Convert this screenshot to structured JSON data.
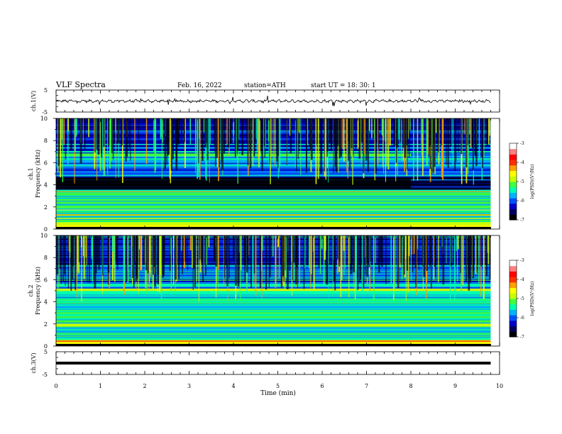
{
  "header": {
    "title": "VLF  Spectra",
    "date": "Feb. 16, 2022",
    "station": "station=ATH",
    "start": "start  UT  =   18: 30: 1"
  },
  "panels": {
    "ch1_label": "ch.1(V)",
    "ch1_ymax": "5",
    "ch1_ymin": "-5",
    "spec1_label": "ch.1\nFrequency (kHz)",
    "spec2_label": "ch.2\nFrequency (kHz)",
    "ch3_label": "ch.3(V)",
    "ch3_ymax": "5",
    "ch3_ymin": "-5",
    "xlabel": "Time  (min)"
  },
  "colorbar": {
    "label": "log(PSD)(V²/Hz)",
    "ticks": [
      "-3",
      "-4",
      "-5",
      "-6",
      "-7"
    ],
    "colors": [
      "#000000",
      "#000060",
      "#0000c8",
      "#0050ff",
      "#00b4ff",
      "#00ffb0",
      "#40ff40",
      "#c8ff00",
      "#ffff00",
      "#ffa000",
      "#ff3000",
      "#ff0000",
      "#ff8080",
      "#ffffff"
    ]
  },
  "chart_data": [
    {
      "type": "line",
      "title": "ch.1(V)",
      "ylabel": "ch.1(V)",
      "xlabel": "Time  (min)",
      "xlim": [
        0,
        10
      ],
      "ylim": [
        -5,
        5
      ],
      "data_end_min": 9.8,
      "baseline_v": 0,
      "noise_amplitude_v": 1,
      "grid": false
    },
    {
      "type": "heatmap",
      "title": "ch.1",
      "ylabel": "Frequency (kHz)",
      "xlim": [
        0,
        10
      ],
      "ylim": [
        0,
        10
      ],
      "x_ticks": [
        "0",
        "1",
        "2",
        "3",
        "4",
        "5",
        "6",
        "7",
        "8",
        "9",
        "10"
      ],
      "y_ticks": [
        "0",
        "2",
        "4",
        "6",
        "8",
        "10"
      ],
      "color_scale": "log(PSD)(V²/Hz)",
      "clim": [
        -7,
        -3
      ],
      "features": [
        {
          "kind": "band",
          "freq_khz": 6.7,
          "t_end_min": 8.0,
          "level": -5.3
        },
        {
          "kind": "band",
          "freq_khz": 2.0,
          "level": -5.2
        },
        {
          "kind": "band",
          "freq_khz": 0.5,
          "level": -4.7
        },
        {
          "kind": "quiet_zone",
          "freq_khz": [
            3.7,
            4.6
          ],
          "level": -6.9
        },
        {
          "kind": "activity_change",
          "t_min": 8.0
        }
      ]
    },
    {
      "type": "heatmap",
      "title": "ch.2",
      "ylabel": "Frequency (kHz)",
      "xlim": [
        0,
        10
      ],
      "ylim": [
        0,
        10
      ],
      "x_ticks": [
        "0",
        "1",
        "2",
        "3",
        "4",
        "5",
        "6",
        "7",
        "8",
        "9",
        "10"
      ],
      "y_ticks": [
        "0",
        "2",
        "4",
        "6",
        "8",
        "10"
      ],
      "color_scale": "log(PSD)(V²/Hz)",
      "clim": [
        -7,
        -3
      ],
      "features": [
        {
          "kind": "band",
          "freq_khz": 1.9,
          "level": -4.8
        },
        {
          "kind": "band",
          "freq_khz": 4.8,
          "level": -5.4
        },
        {
          "kind": "band",
          "freq_khz": 5.5,
          "level": -5.6
        },
        {
          "kind": "activity_change",
          "t_min": 8.0
        }
      ]
    },
    {
      "type": "line",
      "title": "ch.3(V)",
      "ylabel": "ch.3(V)",
      "xlabel": "Time  (min)",
      "xlim": [
        0,
        10
      ],
      "ylim": [
        -5,
        5
      ],
      "data_end_min": 9.8,
      "baseline_v": 0,
      "noise_amplitude_v": 0,
      "grid": false
    }
  ]
}
